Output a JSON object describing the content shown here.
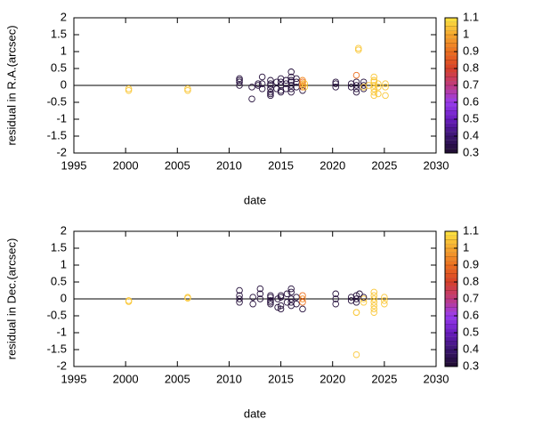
{
  "chart_data": [
    {
      "type": "scatter",
      "xlabel": "date",
      "ylabel": "residual in R.A.(arcsec)",
      "xlim": [
        1995,
        2030
      ],
      "xticks": [
        1995,
        2000,
        2005,
        2010,
        2015,
        2020,
        2025,
        2030
      ],
      "ylim": [
        -2,
        2
      ],
      "yticks": [
        -2,
        -1.5,
        -1,
        -0.5,
        0,
        0.5,
        1,
        1.5,
        2
      ],
      "reference_line": 0,
      "colorbar": {
        "lim": [
          0.3,
          1.1
        ],
        "ticks": [
          0.3,
          0.4,
          0.5,
          0.6,
          0.7,
          0.8,
          0.9,
          1,
          1.1
        ],
        "palette": [
          "#1e0d2e",
          "#3a1570",
          "#6a1cc0",
          "#9a3cf0",
          "#c03a80",
          "#d84028",
          "#ec7020",
          "#f6a830",
          "#fde640"
        ]
      },
      "series": [
        {
          "x": [
            2000.3,
            2000.3,
            2006,
            2006,
            2011,
            2011,
            2011,
            2011,
            2012.2,
            2012.2,
            2012.8,
            2012.8,
            2013.2,
            2013.2,
            2013.2,
            2014,
            2014,
            2014,
            2014,
            2014,
            2014,
            2014,
            2014.6,
            2014.6,
            2015,
            2015,
            2015,
            2015,
            2015,
            2015.5,
            2015.5,
            2015.5,
            2016,
            2016,
            2016,
            2016,
            2016,
            2016,
            2016,
            2016.5,
            2016.5,
            2016.5,
            2017.1,
            2017.1,
            2017.1,
            2017.1,
            2017.1,
            2017.1,
            2017.3,
            2017.3,
            2020.3,
            2020.3,
            2020.3,
            2021.8,
            2021.8,
            2022.3,
            2022.3,
            2022.3,
            2022.3,
            2022.3,
            2022.5,
            2022.5,
            2023,
            2023,
            2023,
            2023,
            2023.5,
            2024,
            2024,
            2024,
            2024,
            2024,
            2024,
            2024,
            2024.4,
            2024.4,
            2024.4,
            2025.1,
            2025.1,
            2025.1
          ],
          "values": [
            -0.1,
            -0.15,
            -0.1,
            -0.15,
            0.15,
            0.2,
            0.1,
            0,
            -0.05,
            -0.4,
            0.05,
            0,
            0.25,
            0.05,
            -0.1,
            -0.3,
            -0.2,
            -0.1,
            0,
            0.05,
            0.15,
            -0.25,
            -0.1,
            0.1,
            0,
            -0.15,
            0.1,
            -0.2,
            0.2,
            0.05,
            -0.1,
            0.15,
            0.15,
            0.25,
            0.4,
            -0.1,
            0,
            -0.2,
            0.1,
            0.1,
            -0.05,
            0.2,
            0.15,
            0.1,
            0.05,
            -0.05,
            -0.15,
            0,
            0.05,
            -0.05,
            0.05,
            0.1,
            -0.05,
            0.05,
            -0.05,
            0.3,
            0.1,
            0,
            -0.1,
            -0.2,
            1.1,
            1.05,
            0.1,
            -0.1,
            0,
            -0.05,
            0,
            0.25,
            0.15,
            0.1,
            0,
            -0.1,
            -0.2,
            -0.3,
            -0.05,
            0.05,
            -0.25,
            0.05,
            -0.05,
            -0.3
          ],
          "c": [
            1.05,
            1.05,
            1.05,
            1.05,
            0.32,
            0.32,
            0.32,
            0.32,
            0.32,
            0.32,
            0.32,
            0.32,
            0.32,
            0.32,
            0.32,
            0.32,
            0.32,
            0.32,
            0.32,
            0.32,
            0.32,
            0.32,
            0.32,
            0.32,
            0.32,
            0.32,
            0.32,
            0.32,
            0.32,
            0.32,
            0.32,
            0.32,
            0.32,
            0.32,
            0.32,
            0.32,
            0.32,
            0.32,
            0.32,
            0.32,
            0.32,
            0.32,
            0.95,
            0.9,
            0.95,
            0.9,
            0.32,
            0.95,
            1.05,
            1.05,
            0.32,
            0.32,
            0.32,
            0.32,
            0.32,
            0.9,
            0.32,
            0.32,
            0.32,
            0.32,
            1.05,
            1.05,
            0.32,
            0.32,
            0.32,
            1.05,
            1.05,
            1.05,
            1.05,
            1.05,
            1.05,
            1.05,
            1.05,
            1.05,
            1.05,
            1.05,
            1.05,
            1.05,
            1.05,
            1.05
          ]
        }
      ]
    },
    {
      "type": "scatter",
      "xlabel": "date",
      "ylabel": "residual in Dec.(arcsec)",
      "xlim": [
        1995,
        2030
      ],
      "xticks": [
        1995,
        2000,
        2005,
        2010,
        2015,
        2020,
        2025,
        2030
      ],
      "ylim": [
        -2,
        2
      ],
      "yticks": [
        -2,
        -1.5,
        -1,
        -0.5,
        0,
        0.5,
        1,
        1.5,
        2
      ],
      "reference_line": 0,
      "colorbar": {
        "lim": [
          0.3,
          1.1
        ],
        "ticks": [
          0.3,
          0.4,
          0.5,
          0.6,
          0.7,
          0.8,
          0.9,
          1,
          1.1
        ],
        "palette": [
          "#1e0d2e",
          "#3a1570",
          "#6a1cc0",
          "#9a3cf0",
          "#c03a80",
          "#d84028",
          "#ec7020",
          "#f6a830",
          "#fde640"
        ]
      },
      "series": [
        {
          "x": [
            2000.3,
            2000.3,
            2006,
            2006,
            2011,
            2011,
            2011,
            2011,
            2012.3,
            2012.3,
            2013,
            2013,
            2013,
            2014,
            2014,
            2014,
            2014,
            2014,
            2014.7,
            2014.7,
            2015,
            2015,
            2015,
            2015,
            2015.6,
            2015.6,
            2016,
            2016,
            2016,
            2016,
            2016,
            2016.5,
            2016.5,
            2017.1,
            2017.1,
            2017.1,
            2017.1,
            2020.3,
            2020.3,
            2020.3,
            2021.8,
            2021.8,
            2022.3,
            2022.3,
            2022.3,
            2022.3,
            2022.3,
            2022.3,
            2022.6,
            2023,
            2023,
            2023,
            2024,
            2024,
            2024,
            2024,
            2024,
            2024,
            2024,
            2025,
            2025,
            2025
          ],
          "values": [
            -0.05,
            -0.08,
            0.02,
            0.05,
            0.25,
            0.1,
            0,
            -0.1,
            0.05,
            -0.15,
            0.3,
            0.15,
            0,
            0.05,
            -0.05,
            -0.15,
            0.1,
            -0.1,
            -0.25,
            0,
            0.1,
            -0.2,
            0.05,
            -0.3,
            0.15,
            -0.1,
            0.3,
            0.2,
            -0.2,
            0,
            -0.1,
            0.05,
            -0.15,
            0.1,
            0,
            -0.1,
            -0.3,
            0.15,
            0,
            -0.15,
            0.05,
            -0.05,
            0.1,
            0,
            -0.1,
            -0.4,
            -0.4,
            -1.65,
            0.15,
            0,
            -0.1,
            0.05,
            0.2,
            0.1,
            0,
            -0.1,
            -0.2,
            -0.3,
            -0.4,
            0.05,
            -0.05,
            -0.15
          ],
          "c": [
            1.05,
            1.05,
            1.05,
            1.05,
            0.32,
            0.32,
            0.32,
            0.32,
            0.32,
            0.32,
            0.32,
            0.32,
            0.32,
            0.32,
            0.32,
            0.32,
            0.32,
            0.32,
            0.32,
            0.32,
            0.32,
            0.32,
            0.32,
            0.32,
            0.32,
            0.32,
            0.32,
            0.32,
            0.32,
            0.32,
            0.32,
            0.32,
            0.32,
            0.9,
            0.95,
            0.9,
            0.32,
            0.32,
            0.32,
            0.32,
            0.32,
            0.32,
            0.32,
            0.32,
            0.32,
            1.05,
            1.05,
            1.05,
            0.32,
            1.05,
            1.05,
            0.32,
            1.05,
            1.05,
            1.05,
            1.05,
            1.05,
            1.05,
            1.05,
            1.05,
            1.05,
            1.05
          ]
        }
      ]
    }
  ]
}
